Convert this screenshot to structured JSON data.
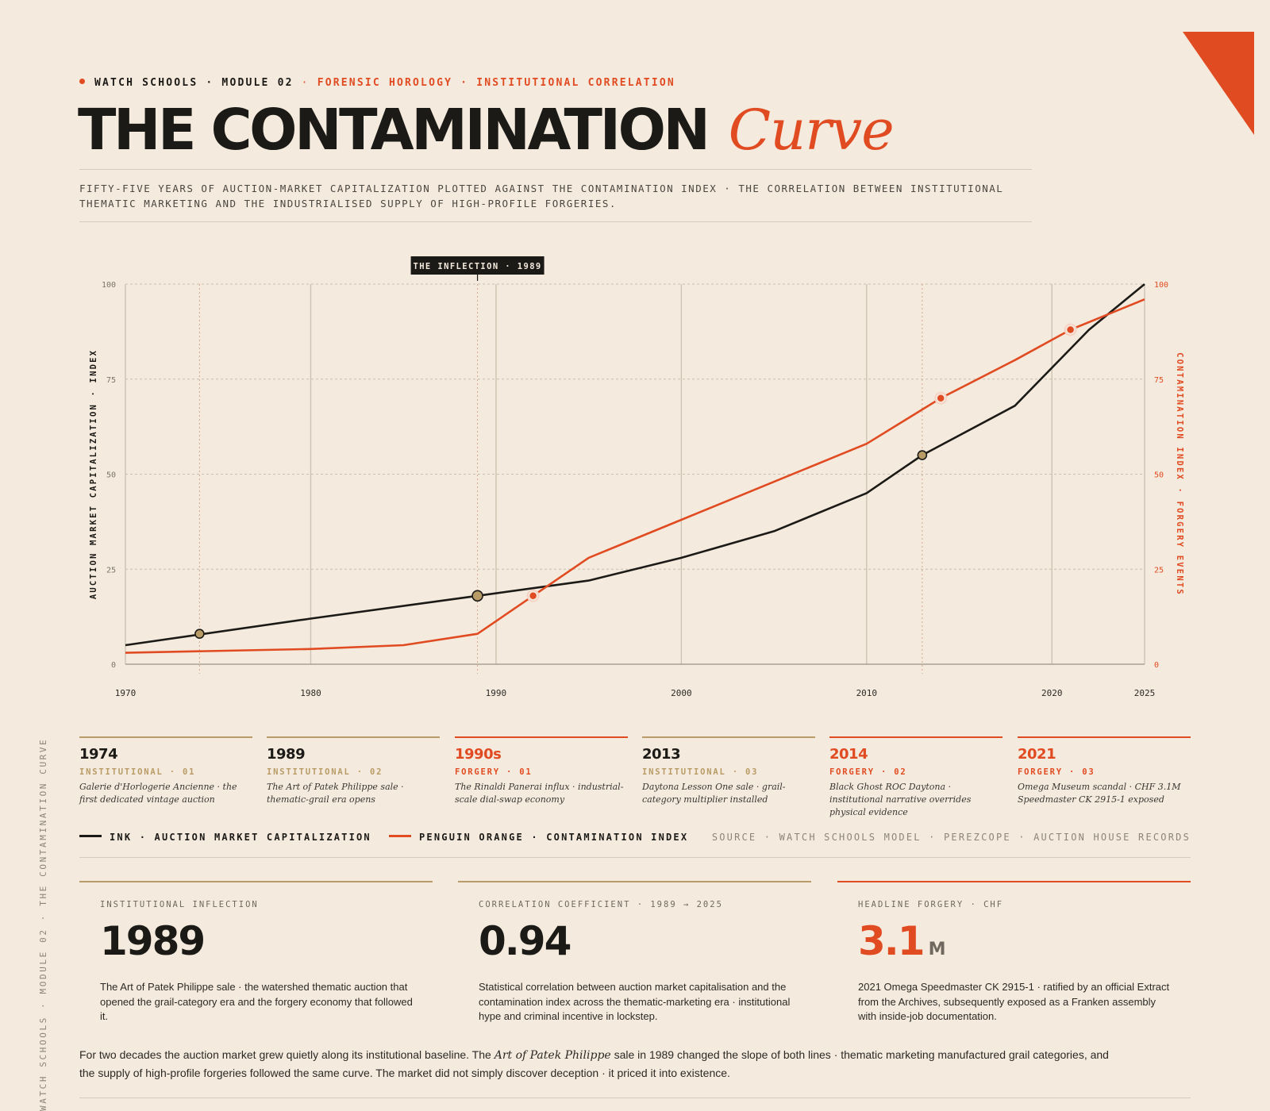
{
  "header": {
    "kicker_left": "WATCH SCHOOLS · MODULE 02",
    "kicker_sep": "·",
    "kicker_right": "FORENSIC HOROLOGY · INSTITUTIONAL CORRELATION",
    "title_main": "THE CONTAMINATION",
    "title_accent": "Curve",
    "subtitle": "FIFTY-FIVE YEARS OF AUCTION-MARKET CAPITALIZATION PLOTTED AGAINST THE CONTAMINATION INDEX · THE CORRELATION BETWEEN INSTITUTIONAL THEMATIC MARKETING AND THE INDUSTRIALISED SUPPLY OF HIGH-PROFILE FORGERIES."
  },
  "side_label": "WATCH SCHOOLS · MODULE 02 · THE CONTAMINATION CURVE",
  "chart_data": {
    "type": "line",
    "xlim": [
      1970,
      2025
    ],
    "ylim": [
      0,
      100
    ],
    "x_ticks": [
      1970,
      1980,
      1990,
      2000,
      2010,
      2020,
      2025
    ],
    "y_ticks": [
      0,
      25,
      50,
      75,
      100
    ],
    "ylabel_left": "AUCTION MARKET CAPITALIZATION · INDEX",
    "ylabel_right": "CONTAMINATION INDEX · FORGERY EVENTS",
    "grid": true,
    "annotation": {
      "label": "THE INFLECTION · 1989",
      "x": 1989
    },
    "series": [
      {
        "name": "INK · AUCTION MARKET CAPITALIZATION",
        "color": "#1c1a17",
        "points": [
          [
            1970,
            5
          ],
          [
            1980,
            12
          ],
          [
            1989,
            18
          ],
          [
            1995,
            22
          ],
          [
            2000,
            28
          ],
          [
            2005,
            35
          ],
          [
            2010,
            45
          ],
          [
            2013,
            55
          ],
          [
            2018,
            68
          ],
          [
            2022,
            88
          ],
          [
            2025,
            100
          ]
        ]
      },
      {
        "name": "PENGUIN ORANGE · CONTAMINATION INDEX",
        "color": "#e14b22",
        "points": [
          [
            1970,
            3
          ],
          [
            1980,
            4
          ],
          [
            1985,
            5
          ],
          [
            1989,
            8
          ],
          [
            1992,
            18
          ],
          [
            1995,
            28
          ],
          [
            2000,
            38
          ],
          [
            2005,
            48
          ],
          [
            2010,
            58
          ],
          [
            2014,
            70
          ],
          [
            2018,
            80
          ],
          [
            2021,
            88
          ],
          [
            2025,
            96
          ]
        ]
      }
    ],
    "markers": [
      {
        "series": 0,
        "x": 1974,
        "y": 8,
        "color": "#b89b66"
      },
      {
        "series": 0,
        "x": 1989,
        "y": 18,
        "color": "#b89b66"
      },
      {
        "series": 0,
        "x": 2013,
        "y": 55,
        "color": "#b89b66"
      },
      {
        "series": 1,
        "x": 1992,
        "y": 18,
        "color": "#e14b22"
      },
      {
        "series": 1,
        "x": 2014,
        "y": 70,
        "color": "#e14b22"
      },
      {
        "series": 1,
        "x": 2021,
        "y": 88,
        "color": "#e14b22"
      }
    ],
    "drop_lines_x": [
      1974,
      1989,
      2013
    ]
  },
  "timeline": [
    {
      "year": "1974",
      "tag": "INSTITUTIONAL · 01",
      "desc": "Galerie d'Horlogerie Ancienne · the first dedicated vintage auction",
      "kind": "institutional"
    },
    {
      "year": "1989",
      "tag": "INSTITUTIONAL · 02",
      "desc": "The Art of Patek Philippe sale · thematic-grail era opens",
      "kind": "institutional"
    },
    {
      "year": "1990s",
      "tag": "FORGERY · 01",
      "desc": "The Rinaldi Panerai influx · industrial-scale dial-swap economy",
      "kind": "forgery"
    },
    {
      "year": "2013",
      "tag": "INSTITUTIONAL · 03",
      "desc": "Daytona Lesson One sale · grail-category multiplier installed",
      "kind": "institutional"
    },
    {
      "year": "2014",
      "tag": "FORGERY · 02",
      "desc": "Black Ghost ROC Daytona · institutional narrative overrides physical evidence",
      "kind": "forgery"
    },
    {
      "year": "2021",
      "tag": "FORGERY · 03",
      "desc": "Omega Museum scandal · CHF 3.1M Speedmaster CK 2915-1 exposed",
      "kind": "forgery"
    }
  ],
  "legend": {
    "ink": "INK · AUCTION MARKET CAPITALIZATION",
    "orange": "PENGUIN ORANGE · CONTAMINATION INDEX",
    "source": "SOURCE · WATCH SCHOOLS MODEL · PEREZCOPE · AUCTION HOUSE RECORDS"
  },
  "stats": [
    {
      "label": "INSTITUTIONAL INFLECTION",
      "value": "1989",
      "unit": "",
      "text": "The Art of Patek Philippe sale · the watershed thematic auction that opened the grail-category era and the forgery economy that followed it."
    },
    {
      "label": "CORRELATION COEFFICIENT · 1989 → 2025",
      "value": "0.94",
      "unit": "",
      "text": "Statistical correlation between auction market capitalisation and the contamination index across the thematic-marketing era · institutional hype and criminal incentive in lockstep."
    },
    {
      "label": "HEADLINE FORGERY · CHF",
      "value": "3.1",
      "unit": "M",
      "text": "2021 Omega Speedmaster CK 2915-1 · ratified by an official Extract from the Archives, subsequently exposed as a Franken assembly with inside-job documentation."
    }
  ],
  "conclusion": {
    "part1": "For two decades the auction market grew quietly along its institutional baseline. The ",
    "italic": "Art of Patek Philippe",
    "part2": " sale in 1989 changed the slope of both lines · thematic marketing manufactured grail categories, and the supply of high-profile forgeries followed the same curve. The market did not simply discover deception · it priced it into existence."
  },
  "colors": {
    "ink": "#1c1a17",
    "orange": "#e14b22",
    "gold": "#b89b66",
    "background": "#f4ebde"
  }
}
